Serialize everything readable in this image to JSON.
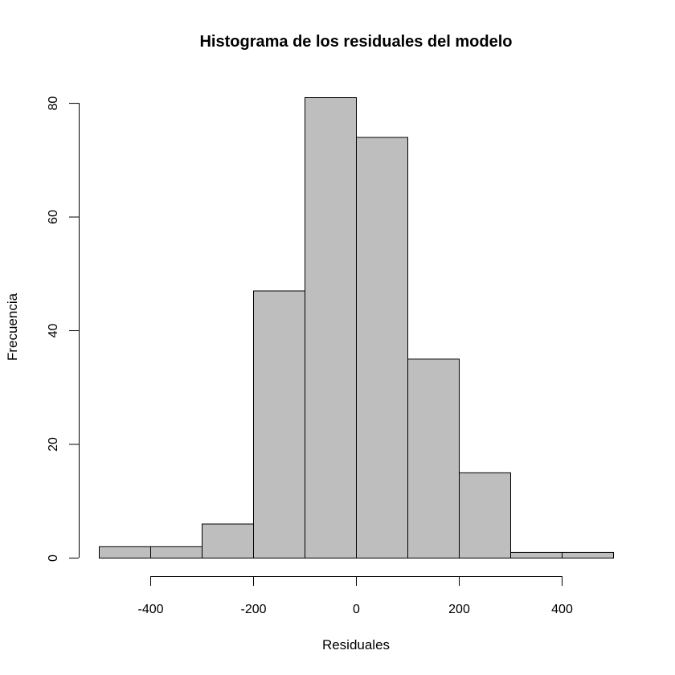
{
  "chart_data": {
    "type": "bar",
    "title": "Histograma de los residuales del modelo",
    "xlabel": "Residuales",
    "ylabel": "Frecuencia",
    "bin_edges": [
      -500,
      -400,
      -300,
      -200,
      -100,
      0,
      100,
      200,
      300,
      400,
      500
    ],
    "values": [
      2,
      2,
      6,
      47,
      81,
      74,
      35,
      15,
      1,
      1
    ],
    "xlim": [
      -500,
      500
    ],
    "ylim": [
      0,
      81
    ],
    "x_ticks": [
      -400,
      -200,
      0,
      200,
      400
    ],
    "x_tick_labels": [
      "-400",
      "-200",
      "0",
      "200",
      "400"
    ],
    "y_ticks": [
      0,
      20,
      40,
      60,
      80
    ],
    "y_tick_labels": [
      "0",
      "20",
      "40",
      "60",
      "80"
    ],
    "bar_color": "#bebebe",
    "grid": false
  }
}
